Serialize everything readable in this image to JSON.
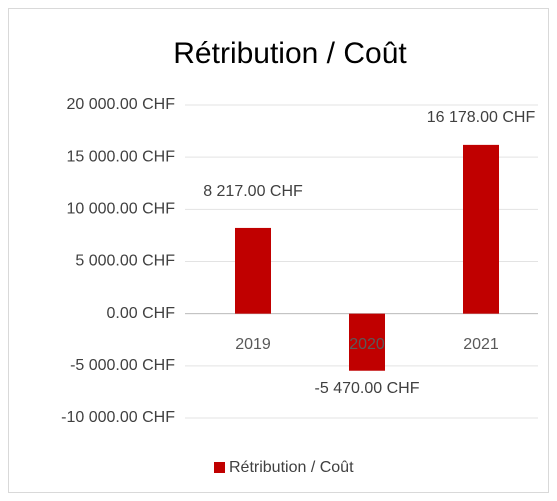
{
  "chart_data": {
    "type": "bar",
    "title": "Rétribution / Coût",
    "categories": [
      "2019",
      "2020",
      "2021"
    ],
    "series": [
      {
        "name": "Rétribution / Coût",
        "color": "#c00000",
        "values": [
          8217,
          -5470,
          16178
        ],
        "value_labels": [
          "8 217.00 CHF",
          "-5 470.00 CHF",
          "16 178.00 CHF"
        ]
      }
    ],
    "ylim": [
      -10000,
      20000
    ],
    "yticks": [
      {
        "value": -10000,
        "label": "-10 000.00 CHF"
      },
      {
        "value": -5000,
        "label": "-5 000.00 CHF"
      },
      {
        "value": 0,
        "label": "0.00 CHF"
      },
      {
        "value": 5000,
        "label": "5 000.00 CHF"
      },
      {
        "value": 10000,
        "label": "10 000.00 CHF"
      },
      {
        "value": 15000,
        "label": "15 000.00 CHF"
      },
      {
        "value": 20000,
        "label": "20 000.00 CHF"
      }
    ],
    "grid": true,
    "legend": "bottom"
  }
}
